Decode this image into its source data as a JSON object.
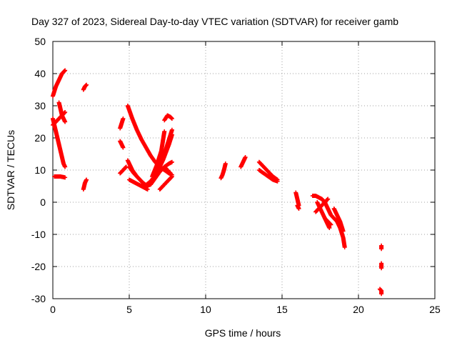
{
  "chart_data": {
    "type": "scatter",
    "title": "Day 327 of 2023, Sidereal Day-to-day VTEC variation (SDTVAR) for receiver gamb",
    "xlabel": "GPS time / hours",
    "ylabel": "SDTVAR / TECUs",
    "xlim": [
      0,
      25
    ],
    "ylim": [
      -30,
      50
    ],
    "xticks": [
      "0",
      "5",
      "10",
      "15",
      "20",
      "25"
    ],
    "yticks": [
      "50",
      "40",
      "30",
      "20",
      "10",
      "0",
      "-10",
      "-20",
      "-30"
    ],
    "grid": true,
    "marker": "plus",
    "color": "#ff0000",
    "segments": [
      {
        "x": [
          0.0,
          0.2,
          0.4,
          0.6,
          0.8
        ],
        "y": [
          33,
          36,
          38,
          40,
          41
        ]
      },
      {
        "x": [
          0.0,
          0.1,
          0.2,
          0.3,
          0.4,
          0.5,
          0.6,
          0.7,
          0.8
        ],
        "y": [
          26,
          24,
          22,
          20,
          18,
          16,
          14,
          12,
          11
        ]
      },
      {
        "x": [
          0.0,
          0.2,
          0.4,
          0.6,
          0.8
        ],
        "y": [
          24,
          25,
          26,
          27,
          28
        ]
      },
      {
        "x": [
          0.4,
          0.5,
          0.6,
          0.7,
          0.8
        ],
        "y": [
          31,
          29,
          27,
          26,
          25
        ]
      },
      {
        "x": [
          0.1,
          0.3,
          0.5,
          0.7,
          0.8
        ],
        "y": [
          8,
          8,
          8,
          7.8,
          7.7
        ]
      },
      {
        "x": [
          2.0,
          2.1,
          2.2
        ],
        "y": [
          35,
          36,
          36.5
        ]
      },
      {
        "x": [
          2.0,
          2.1,
          2.2
        ],
        "y": [
          4,
          6,
          7
        ]
      },
      {
        "x": [
          4.4,
          4.5,
          4.6
        ],
        "y": [
          23,
          24.5,
          26
        ]
      },
      {
        "x": [
          4.4,
          4.5,
          4.6
        ],
        "y": [
          19,
          18,
          17
        ]
      },
      {
        "x": [
          4.4,
          4.6,
          4.8
        ],
        "y": [
          9,
          10,
          11
        ]
      },
      {
        "x": [
          4.9,
          5.2,
          5.5,
          5.8,
          6.1,
          6.4,
          6.7,
          7.0,
          7.3,
          7.6,
          7.8
        ],
        "y": [
          30,
          26,
          22.5,
          19.5,
          17,
          14.5,
          12.5,
          11,
          10,
          9,
          8.5
        ]
      },
      {
        "x": [
          4.9,
          5.2,
          5.5,
          5.8,
          6.1,
          6.4,
          6.7,
          7.0,
          7.3,
          7.6,
          7.8
        ],
        "y": [
          13,
          10,
          8,
          6.5,
          5,
          5.5,
          7.5,
          9.5,
          11,
          12,
          12.5
        ]
      },
      {
        "x": [
          5.0,
          5.3,
          5.6,
          5.9,
          6.2,
          6.5,
          6.8,
          7.1,
          7.4,
          7.7,
          7.8
        ],
        "y": [
          11,
          9,
          7.5,
          6,
          5,
          6.5,
          9.5,
          13,
          16.5,
          21,
          22.5
        ]
      },
      {
        "x": [
          5.0,
          5.4,
          5.8,
          6.2
        ],
        "y": [
          7,
          6,
          5,
          4
        ]
      },
      {
        "x": [
          6.0,
          6.4,
          6.8,
          7.2,
          7.6,
          7.8
        ],
        "y": [
          5,
          6.5,
          9,
          13,
          18,
          21
        ]
      },
      {
        "x": [
          6.5,
          6.8,
          7.1,
          7.3
        ],
        "y": [
          8,
          11.5,
          16,
          22
        ]
      },
      {
        "x": [
          7.0,
          7.2,
          7.4,
          7.6,
          7.8
        ],
        "y": [
          4,
          5,
          6,
          7,
          8
        ]
      },
      {
        "x": [
          7.3,
          7.5,
          7.7,
          7.8
        ],
        "y": [
          25.5,
          27,
          26.5,
          26
        ]
      },
      {
        "x": [
          7.3,
          7.5,
          7.7
        ],
        "y": [
          11,
          10,
          9
        ]
      },
      {
        "x": [
          11.0,
          11.1,
          11.2,
          11.3
        ],
        "y": [
          7.5,
          8.5,
          10,
          12
        ]
      },
      {
        "x": [
          12.3,
          12.4,
          12.5,
          12.6
        ],
        "y": [
          11,
          12,
          13,
          14
        ]
      },
      {
        "x": [
          13.5,
          13.8,
          14.1,
          14.4,
          14.7
        ],
        "y": [
          12.5,
          11,
          9.5,
          8,
          7
        ]
      },
      {
        "x": [
          13.5,
          13.8,
          14.1,
          14.4,
          14.7
        ],
        "y": [
          10,
          9,
          8,
          7,
          6.5
        ]
      },
      {
        "x": [
          15.9,
          16.0,
          16.1
        ],
        "y": [
          3,
          1,
          -1
        ]
      },
      {
        "x": [
          16.0,
          16.1
        ],
        "y": [
          -1,
          -2
        ]
      },
      {
        "x": [
          17.0,
          17.2,
          17.4,
          17.6,
          17.8
        ],
        "y": [
          2,
          2,
          1.5,
          1,
          0
        ]
      },
      {
        "x": [
          17.3,
          17.6,
          17.9,
          18.1
        ],
        "y": [
          0,
          -3,
          -6,
          -8
        ]
      },
      {
        "x": [
          17.6,
          17.8,
          18.0,
          18.2,
          18.4,
          18.6,
          18.8,
          19.0,
          19.1
        ],
        "y": [
          1,
          0,
          -2,
          -4,
          -5,
          -6,
          -8,
          -11,
          -14
        ]
      },
      {
        "x": [
          17.2,
          17.4,
          17.6,
          17.8,
          18.0
        ],
        "y": [
          -3,
          -2,
          -1,
          0,
          1
        ]
      },
      {
        "x": [
          18.4,
          18.6,
          18.8,
          19.0
        ],
        "y": [
          -2,
          -4,
          -6,
          -9
        ]
      },
      {
        "x": [
          17.8,
          18.0,
          18.2
        ],
        "y": [
          -5,
          -6,
          -7
        ]
      },
      {
        "x": [
          21.5,
          21.5
        ],
        "y": [
          -13.5,
          -14.5
        ]
      },
      {
        "x": [
          21.5,
          21.5
        ],
        "y": [
          -19,
          -20.5
        ]
      },
      {
        "x": [
          21.4,
          21.5,
          21.5
        ],
        "y": [
          -27,
          -27.5,
          -28.5
        ]
      }
    ]
  }
}
